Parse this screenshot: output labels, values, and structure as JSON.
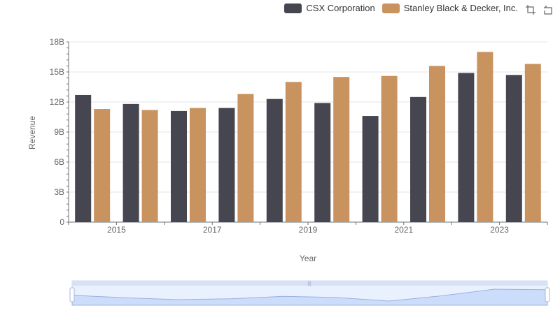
{
  "legend": {
    "series_a": "CSX Corporation",
    "series_b": "Stanley Black & Decker, Inc."
  },
  "toolbox": {
    "zoom_icon": "zoom-icon",
    "restore_icon": "restore-icon"
  },
  "colors": {
    "series_a": "#464650",
    "series_b": "#c8935f",
    "grid": "#e6e6e6",
    "axis": "#6e7079",
    "slider_fill": "#dce6fa",
    "slider_border": "#9fb2d8"
  },
  "chart_data": {
    "type": "bar",
    "title": "",
    "xlabel": "Year",
    "ylabel": "Revenue",
    "ylim": [
      0,
      18000000000
    ],
    "yticks": [
      "0",
      "3B",
      "6B",
      "9B",
      "12B",
      "15B",
      "18B"
    ],
    "xtick_labels": [
      "2015",
      "2017",
      "2019",
      "2021",
      "2023"
    ],
    "categories": [
      "2014",
      "2015",
      "2016",
      "2017",
      "2018",
      "2019",
      "2020",
      "2021",
      "2022",
      "2023"
    ],
    "series": [
      {
        "name": "CSX Corporation",
        "values": [
          12700000000,
          11800000000,
          11100000000,
          11400000000,
          12300000000,
          11900000000,
          10600000000,
          12500000000,
          14900000000,
          14700000000
        ]
      },
      {
        "name": "Stanley Black & Decker, Inc.",
        "values": [
          11300000000,
          11200000000,
          11400000000,
          12800000000,
          14000000000,
          14500000000,
          14600000000,
          15600000000,
          17000000000,
          15800000000
        ]
      }
    ]
  }
}
